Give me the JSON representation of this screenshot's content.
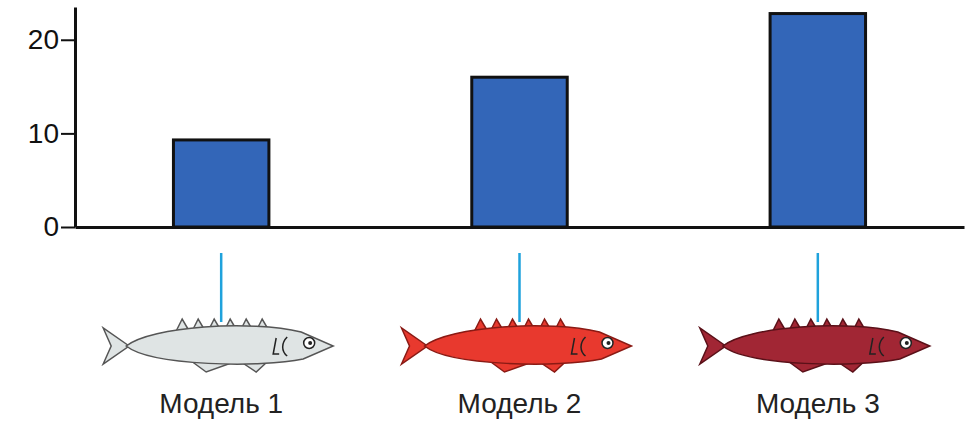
{
  "chart_data": {
    "type": "bar",
    "categories": [
      "Модель 1",
      "Модель 2",
      "Модель 3"
    ],
    "values": [
      9.3,
      16,
      22.8
    ],
    "color": "#3366b8",
    "ylim": [
      0,
      23.5
    ],
    "yticks": [
      0,
      10,
      20
    ],
    "grid": false
  }
}
